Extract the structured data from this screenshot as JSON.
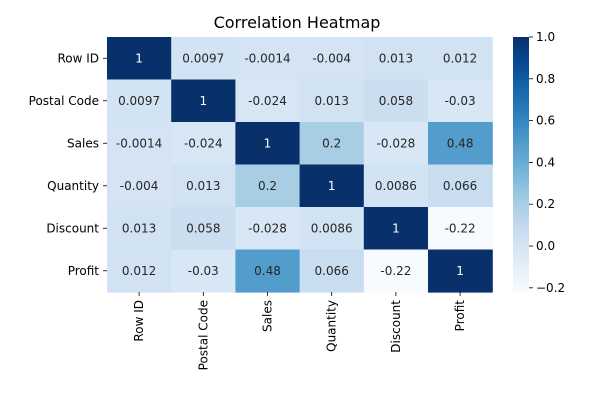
{
  "chart_data": {
    "type": "heatmap",
    "title": "Correlation Heatmap",
    "variables": [
      "Row ID",
      "Postal Code",
      "Sales",
      "Quantity",
      "Discount",
      "Profit"
    ],
    "values": [
      [
        1,
        0.0097,
        -0.0014,
        -0.004,
        0.013,
        0.012
      ],
      [
        0.0097,
        1,
        -0.024,
        0.013,
        0.058,
        -0.03
      ],
      [
        -0.0014,
        -0.024,
        1,
        0.2,
        -0.028,
        0.48
      ],
      [
        -0.004,
        0.013,
        0.2,
        1,
        0.0086,
        0.066
      ],
      [
        0.013,
        0.058,
        -0.028,
        0.0086,
        1,
        -0.22
      ],
      [
        0.012,
        -0.03,
        0.48,
        0.066,
        -0.22,
        1
      ]
    ],
    "cell_labels": [
      [
        "1",
        "0.0097",
        "-0.0014",
        "-0.004",
        "0.013",
        "0.012"
      ],
      [
        "0.0097",
        "1",
        "-0.024",
        "0.013",
        "0.058",
        "-0.03"
      ],
      [
        "-0.0014",
        "-0.024",
        "1",
        "0.2",
        "-0.028",
        "0.48"
      ],
      [
        "-0.004",
        "0.013",
        "0.2",
        "1",
        "0.0086",
        "0.066"
      ],
      [
        "0.013",
        "0.058",
        "-0.028",
        "0.0086",
        "1",
        "-0.22"
      ],
      [
        "0.012",
        "-0.03",
        "0.48",
        "0.066",
        "-0.22",
        "1"
      ]
    ],
    "colormap": "Blues",
    "color_range": [
      -0.22,
      1
    ],
    "colorbar": {
      "ticks": [
        1.0,
        0.8,
        0.6,
        0.4,
        0.2,
        0.0,
        -0.2
      ],
      "tick_labels": [
        "1.0",
        "0.8",
        "0.6",
        "0.4",
        "0.2",
        "0.0",
        "−0.2"
      ]
    }
  }
}
